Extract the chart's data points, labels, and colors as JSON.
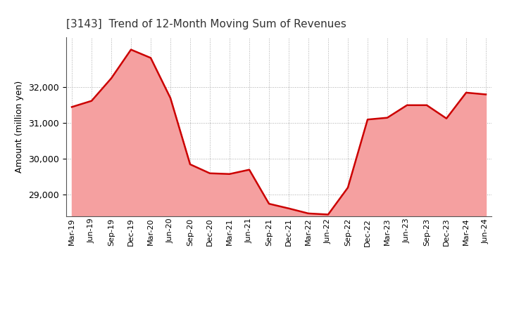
{
  "title": "[3143]  Trend of 12-Month Moving Sum of Revenues",
  "ylabel": "Amount (million yen)",
  "line_color": "#cc0000",
  "fill_color": "#f5a0a0",
  "background_color": "#ffffff",
  "plot_bg_color": "#ffffff",
  "grid_color": "#aaaaaa",
  "ylim": [
    28400,
    33400
  ],
  "yticks": [
    29000,
    30000,
    31000,
    32000
  ],
  "x_labels": [
    "Mar-19",
    "Jun-19",
    "Sep-19",
    "Dec-19",
    "Mar-20",
    "Jun-20",
    "Sep-20",
    "Dec-20",
    "Mar-21",
    "Jun-21",
    "Sep-21",
    "Dec-21",
    "Mar-22",
    "Jun-22",
    "Sep-22",
    "Dec-22",
    "Mar-23",
    "Jun-23",
    "Sep-23",
    "Dec-23",
    "Mar-24",
    "Jun-24"
  ],
  "values": [
    31450,
    31620,
    32250,
    33050,
    32820,
    31700,
    29850,
    29600,
    29580,
    29700,
    28750,
    28620,
    28480,
    28450,
    29200,
    31100,
    31150,
    31500,
    31500,
    31130,
    31850,
    31800
  ]
}
